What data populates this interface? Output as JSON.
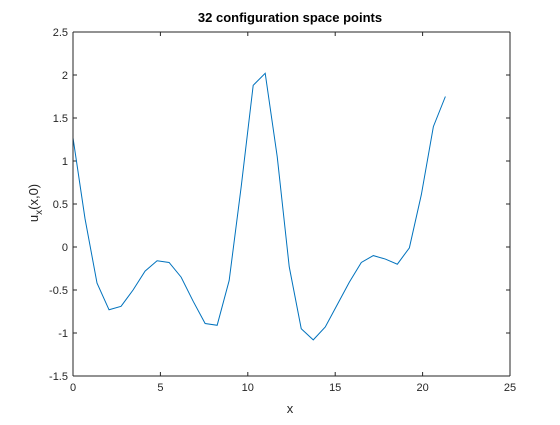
{
  "chart_data": {
    "type": "line",
    "title": "32 configuration space points",
    "xlabel": "x",
    "ylabel_main": "u",
    "ylabel_sub": "x",
    "ylabel_rest": "(x,0)",
    "xlim": [
      0,
      25
    ],
    "ylim": [
      -1.5,
      2.5
    ],
    "xticks": [
      0,
      5,
      10,
      15,
      20,
      25
    ],
    "yticks": [
      -1.5,
      -1,
      -0.5,
      0,
      0.5,
      1,
      1.5,
      2,
      2.5
    ],
    "grid": false,
    "series": [
      {
        "color": "#0072BD",
        "x": [
          0,
          0.6872,
          1.3744,
          2.0617,
          2.7489,
          3.4361,
          4.1233,
          4.8106,
          5.4978,
          6.185,
          6.8722,
          7.5595,
          8.2467,
          8.9339,
          9.6211,
          10.3084,
          10.9956,
          11.6828,
          12.37,
          13.0573,
          13.7445,
          14.4317,
          15.1189,
          15.8062,
          16.4934,
          17.1806,
          17.8678,
          18.5551,
          19.2423,
          19.9295,
          20.6167,
          21.304
        ],
        "y": [
          1.27,
          0.33,
          -0.42,
          -0.73,
          -0.69,
          -0.5,
          -0.28,
          -0.16,
          -0.18,
          -0.35,
          -0.63,
          -0.89,
          -0.91,
          -0.39,
          0.7,
          1.88,
          2.02,
          1.05,
          -0.23,
          -0.95,
          -1.08,
          -0.93,
          -0.67,
          -0.41,
          -0.18,
          -0.1,
          -0.14,
          -0.2,
          -0.01,
          0.61,
          1.4,
          1.75
        ]
      }
    ]
  }
}
